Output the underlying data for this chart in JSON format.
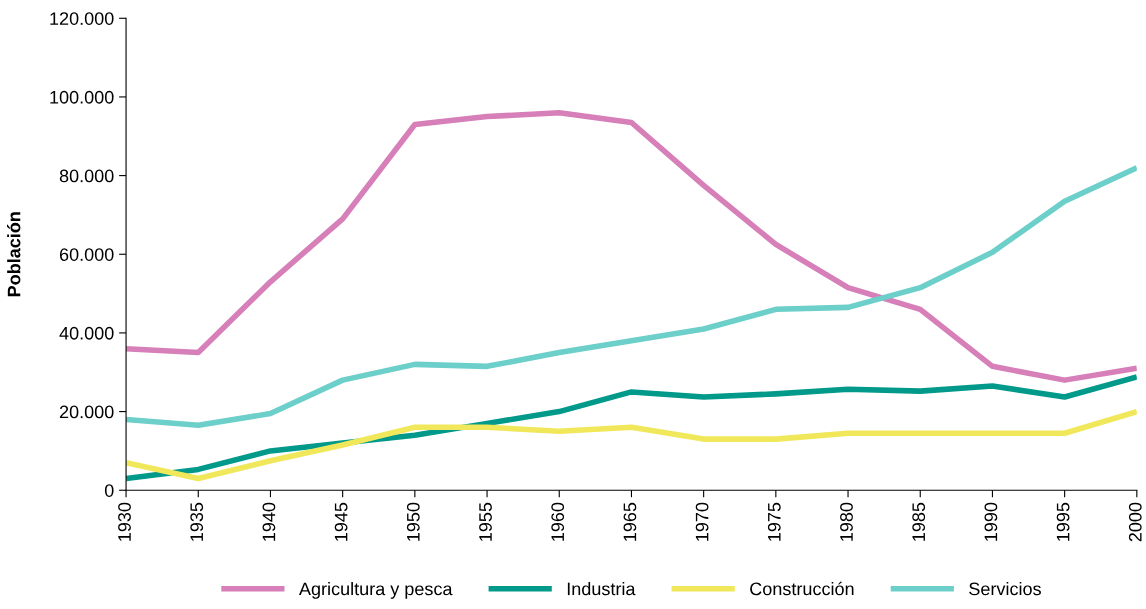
{
  "chart_data": {
    "type": "line",
    "ylabel": "Población",
    "x": [
      1930,
      1935,
      1940,
      1945,
      1950,
      1955,
      1960,
      1965,
      1970,
      1975,
      1980,
      1985,
      1990,
      1995,
      2000
    ],
    "xlim": [
      1930,
      2000
    ],
    "xticks": [
      1930,
      1935,
      1940,
      1945,
      1950,
      1955,
      1960,
      1965,
      1970,
      1975,
      1980,
      1985,
      1990,
      1995,
      2000
    ],
    "ylim": [
      0,
      120000
    ],
    "yticks": [
      0,
      {
        "value": 20000,
        "label": "20.000"
      },
      {
        "value": 40000,
        "label": "40.000"
      },
      {
        "value": 60000,
        "label": "60.000"
      },
      {
        "value": 80000,
        "label": "80.000"
      },
      {
        "value": 100000,
        "label": "100.000"
      },
      {
        "value": 120000,
        "label": "120.000"
      }
    ],
    "grid": false,
    "legend": "bottom",
    "marker": "none",
    "line_style": "solid",
    "series": [
      {
        "name": "Agricultura y pesca",
        "color": "#d67fb8",
        "values": [
          36000,
          35000,
          53000,
          69000,
          93000,
          95000,
          96000,
          93500,
          77500,
          62500,
          51500,
          46000,
          31500,
          28000,
          31000
        ]
      },
      {
        "name": "Industria",
        "color": "#00998a",
        "values": [
          3000,
          5300,
          10000,
          12000,
          14000,
          17000,
          20000,
          25000,
          23700,
          24500,
          25700,
          25200,
          26500,
          23700,
          28800
        ]
      },
      {
        "name": "Construcción",
        "color": "#f0e85a",
        "values": [
          7000,
          3000,
          7500,
          11500,
          16000,
          16000,
          15000,
          16000,
          13000,
          13000,
          14500,
          14500,
          14500,
          14500,
          20000
        ]
      },
      {
        "name": "Servicios",
        "color": "#6ccfca",
        "values": [
          18000,
          16500,
          19500,
          28000,
          32000,
          31500,
          35000,
          38000,
          41000,
          46000,
          46500,
          51500,
          60500,
          73500,
          82000
        ]
      }
    ]
  }
}
